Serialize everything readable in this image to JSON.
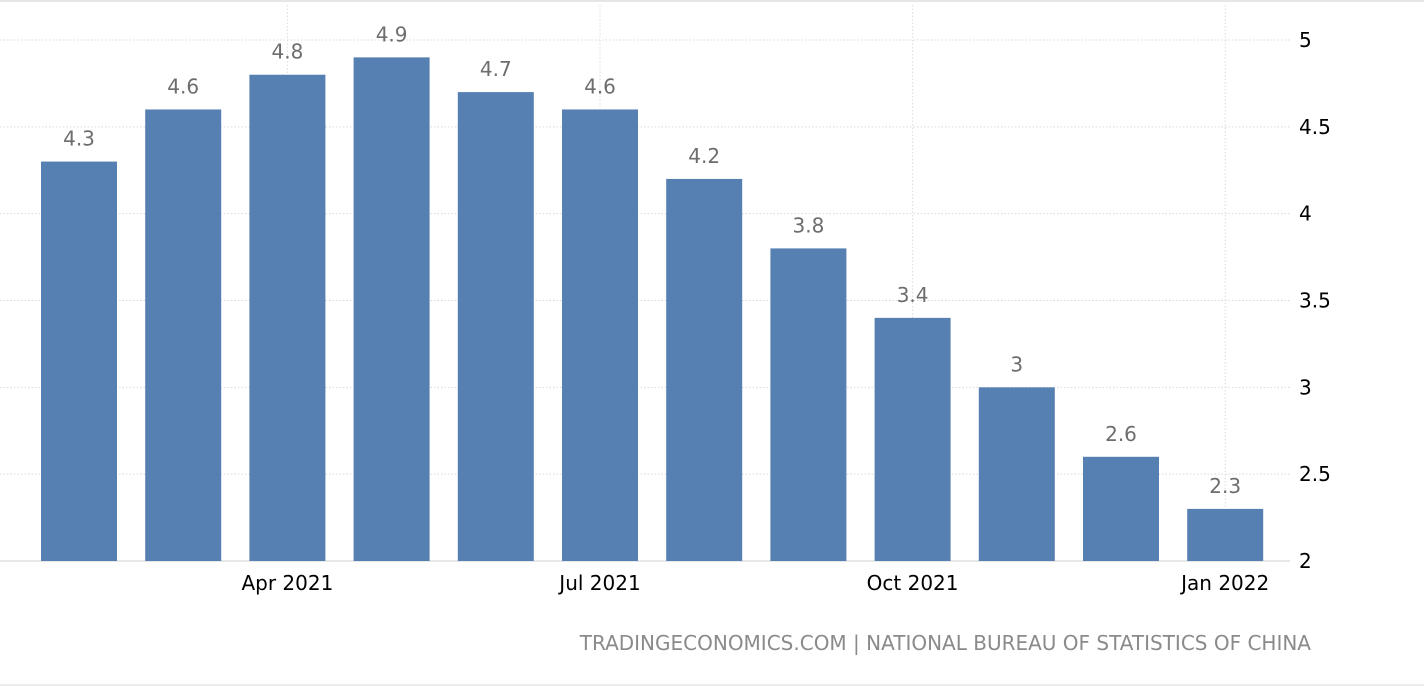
{
  "chart_data": {
    "type": "bar",
    "x": [
      "2021-02",
      "2021-03",
      "2021-04",
      "2021-05",
      "2021-06",
      "2021-07",
      "2021-08",
      "2021-09",
      "2021-10",
      "2021-11",
      "2021-12",
      "2022-01"
    ],
    "values": [
      4.3,
      4.6,
      4.8,
      4.9,
      4.7,
      4.6,
      4.2,
      3.8,
      3.4,
      3.0,
      2.6,
      2.3
    ],
    "value_labels": [
      "4.3",
      "4.6",
      "4.8",
      "4.9",
      "4.7",
      "4.6",
      "4.2",
      "3.8",
      "3.4",
      "3",
      "2.6",
      "2.3"
    ],
    "x_tick_labels": [
      {
        "month": "2021-04",
        "label": "Apr 2021"
      },
      {
        "month": "2021-07",
        "label": "Jul 2021"
      },
      {
        "month": "2021-10",
        "label": "Oct 2021"
      },
      {
        "month": "2022-01",
        "label": "Jan 2022"
      }
    ],
    "y_ticks": [
      2,
      2.5,
      3,
      3.5,
      4,
      4.5,
      5
    ],
    "y_tick_labels": [
      "2",
      "2.5",
      "3",
      "3.5",
      "4",
      "4.5",
      "5"
    ],
    "ylim": [
      2,
      5
    ],
    "y_axis_side": "right",
    "grid": true,
    "bar_color": "#5680b1",
    "title": "",
    "xlabel": "",
    "ylabel": ""
  },
  "source_text": "TRADINGECONOMICS.COM | NATIONAL BUREAU OF STATISTICS OF CHINA"
}
